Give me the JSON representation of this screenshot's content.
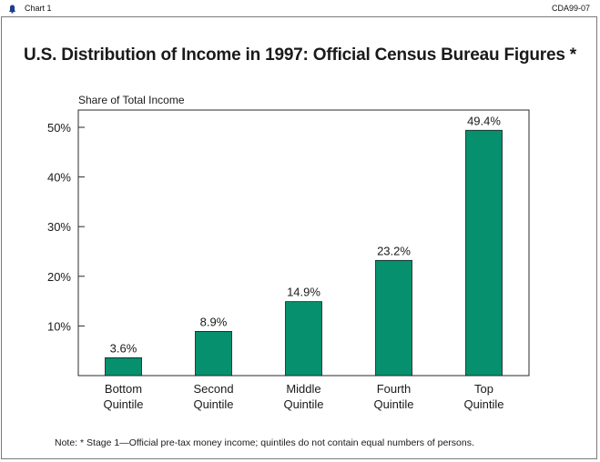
{
  "window": {
    "tab_label": "Chart 1",
    "code": "CDA99-07"
  },
  "chart_data": {
    "type": "bar",
    "title": "U.S. Distribution of Income in 1997: Official Census Bureau Figures *",
    "ylabel": "Share of Total Income",
    "categories": [
      [
        "Bottom",
        "Quintile"
      ],
      [
        "Second",
        "Quintile"
      ],
      [
        "Middle",
        "Quintile"
      ],
      [
        "Fourth",
        "Quintile"
      ],
      [
        "Top",
        "Quintile"
      ]
    ],
    "values": [
      3.6,
      8.9,
      14.9,
      23.2,
      49.4
    ],
    "value_labels": [
      "3.6%",
      "8.9%",
      "14.9%",
      "23.2%",
      "49.4%"
    ],
    "yticks": [
      10,
      20,
      30,
      40,
      50
    ],
    "ytick_labels": [
      "10%",
      "20%",
      "30%",
      "40%",
      "50%"
    ],
    "ylim": [
      0,
      50
    ],
    "bar_color": "#06906e",
    "grid": false,
    "legend": "none"
  },
  "note": "Note: * Stage 1—Official pre-tax money income; quintiles do not contain equal numbers of persons."
}
